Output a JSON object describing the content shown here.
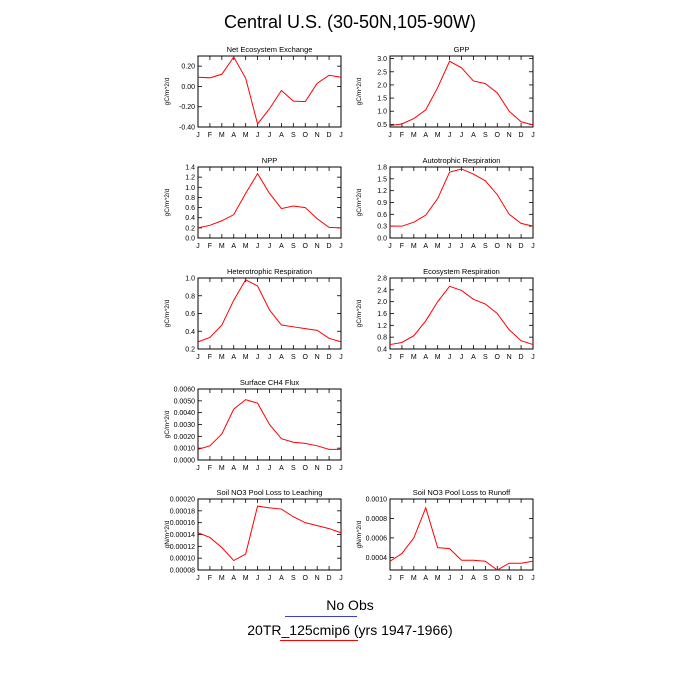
{
  "title": "Central U.S. (30-50N,105-90W)",
  "legend": {
    "obs_label": "No Obs",
    "obs_color": "#3d3dcc",
    "model_label": "20TR_125cmip6 (yrs 1947-1966)",
    "model_color": "#ff0000"
  },
  "chart_data": [
    {
      "type": "line",
      "title": "Net Ecosystem Exchange",
      "ylabel": "gC/m^2/d",
      "categories": [
        "J",
        "F",
        "M",
        "A",
        "M",
        "J",
        "J",
        "A",
        "S",
        "O",
        "N",
        "D",
        "J"
      ],
      "ylim": [
        -0.4,
        0.3
      ],
      "yticks": [
        -0.4,
        -0.2,
        0.0,
        0.2
      ],
      "ytick_labels": [
        "-0.40",
        "-0.20",
        "0.00",
        "0.20"
      ],
      "series": [
        {
          "values": [
            0.09,
            0.085,
            0.12,
            0.29,
            0.08,
            -0.37,
            -0.22,
            -0.04,
            -0.145,
            -0.15,
            0.03,
            0.11,
            0.09
          ]
        }
      ]
    },
    {
      "type": "line",
      "title": "GPP",
      "ylabel": "gC/m^2/d",
      "categories": [
        "J",
        "F",
        "M",
        "A",
        "M",
        "J",
        "J",
        "A",
        "S",
        "O",
        "N",
        "D",
        "J"
      ],
      "ylim": [
        0.4,
        3.1
      ],
      "yticks": [
        0.5,
        1.0,
        1.5,
        2.0,
        2.5,
        3.0
      ],
      "ytick_labels": [
        "0.5",
        "1.0",
        "1.5",
        "2.0",
        "2.5",
        "3.0"
      ],
      "series": [
        {
          "values": [
            0.45,
            0.52,
            0.72,
            1.05,
            1.9,
            2.9,
            2.65,
            2.15,
            2.05,
            1.7,
            1.0,
            0.6,
            0.48
          ]
        }
      ]
    },
    {
      "type": "line",
      "title": "NPP",
      "ylabel": "gC/m^2/d",
      "categories": [
        "J",
        "F",
        "M",
        "A",
        "M",
        "J",
        "J",
        "A",
        "S",
        "O",
        "N",
        "D",
        "J"
      ],
      "ylim": [
        0.0,
        1.4
      ],
      "yticks": [
        0.0,
        0.2,
        0.4,
        0.6,
        0.8,
        1.0,
        1.2,
        1.4
      ],
      "ytick_labels": [
        "0.0",
        "0.2",
        "0.4",
        "0.6",
        "0.8",
        "1.0",
        "1.2",
        "1.4"
      ],
      "series": [
        {
          "values": [
            0.2,
            0.25,
            0.34,
            0.46,
            0.88,
            1.27,
            0.88,
            0.58,
            0.63,
            0.6,
            0.38,
            0.21,
            0.2
          ]
        }
      ]
    },
    {
      "type": "line",
      "title": "Autotrophic Respiration",
      "ylabel": "gC/m^2/d",
      "categories": [
        "J",
        "F",
        "M",
        "A",
        "M",
        "J",
        "J",
        "A",
        "S",
        "O",
        "N",
        "D",
        "J"
      ],
      "ylim": [
        0.0,
        1.8
      ],
      "yticks": [
        0.0,
        0.3,
        0.6,
        0.9,
        1.2,
        1.5,
        1.8
      ],
      "ytick_labels": [
        "0.0",
        "0.3",
        "0.6",
        "0.9",
        "1.2",
        "1.5",
        "1.8"
      ],
      "series": [
        {
          "values": [
            0.3,
            0.3,
            0.4,
            0.58,
            1.0,
            1.67,
            1.75,
            1.62,
            1.45,
            1.1,
            0.6,
            0.37,
            0.3
          ]
        }
      ]
    },
    {
      "type": "line",
      "title": "Heterotrophic Respiration",
      "ylabel": "gC/m^2/d",
      "categories": [
        "J",
        "F",
        "M",
        "A",
        "M",
        "J",
        "J",
        "A",
        "S",
        "O",
        "N",
        "D",
        "J"
      ],
      "ylim": [
        0.2,
        1.0
      ],
      "yticks": [
        0.2,
        0.4,
        0.6,
        0.8,
        1.0
      ],
      "ytick_labels": [
        "0.2",
        "0.4",
        "0.6",
        "0.8",
        "1.0"
      ],
      "series": [
        {
          "values": [
            0.28,
            0.33,
            0.47,
            0.75,
            0.98,
            0.91,
            0.64,
            0.47,
            0.45,
            0.43,
            0.41,
            0.32,
            0.28
          ]
        }
      ]
    },
    {
      "type": "line",
      "title": "Ecosystem Respiration",
      "ylabel": "gC/m^2/d",
      "categories": [
        "J",
        "F",
        "M",
        "A",
        "M",
        "J",
        "J",
        "A",
        "S",
        "O",
        "N",
        "D",
        "J"
      ],
      "ylim": [
        0.4,
        2.8
      ],
      "yticks": [
        0.4,
        0.8,
        1.2,
        1.6,
        2.0,
        2.4,
        2.8
      ],
      "ytick_labels": [
        "0.4",
        "0.8",
        "1.2",
        "1.6",
        "2.0",
        "2.4",
        "2.8"
      ],
      "series": [
        {
          "values": [
            0.55,
            0.62,
            0.85,
            1.35,
            2.0,
            2.52,
            2.38,
            2.08,
            1.92,
            1.6,
            1.05,
            0.68,
            0.55
          ]
        }
      ]
    },
    {
      "type": "line",
      "title": "Surface CH4 Flux",
      "ylabel": "gC/m^2/d",
      "categories": [
        "J",
        "F",
        "M",
        "A",
        "M",
        "J",
        "J",
        "A",
        "S",
        "O",
        "N",
        "D",
        "J"
      ],
      "ylim": [
        0.0,
        0.006
      ],
      "yticks": [
        0.0,
        0.001,
        0.002,
        0.003,
        0.004,
        0.005,
        0.006
      ],
      "ytick_labels": [
        "0.0000",
        "0.0010",
        "0.0020",
        "0.0030",
        "0.0040",
        "0.0050",
        "0.0060"
      ],
      "series": [
        {
          "values": [
            0.0009,
            0.0012,
            0.0022,
            0.0043,
            0.0051,
            0.0048,
            0.003,
            0.0018,
            0.0015,
            0.0014,
            0.0012,
            0.0009,
            0.0009
          ]
        }
      ]
    },
    {
      "type": "line",
      "title": "Soil NO3 Pool Loss to Leaching",
      "ylabel": "gN/m^2/d",
      "categories": [
        "J",
        "F",
        "M",
        "A",
        "M",
        "J",
        "J",
        "A",
        "S",
        "O",
        "N",
        "D",
        "J"
      ],
      "ylim": [
        8e-05,
        0.0002
      ],
      "yticks": [
        8e-05,
        0.0001,
        0.00012,
        0.00014,
        0.00016,
        0.00018,
        0.0002
      ],
      "ytick_labels": [
        "0.00008",
        "0.00010",
        "0.00012",
        "0.00014",
        "0.00016",
        "0.00018",
        "0.00020"
      ],
      "series": [
        {
          "values": [
            0.000143,
            0.000135,
            0.000118,
            9.6e-05,
            0.000107,
            0.000188,
            0.000185,
            0.000183,
            0.00017,
            0.00016,
            0.000155,
            0.00015,
            0.000143
          ]
        }
      ]
    },
    {
      "type": "line",
      "title": "Soil NO3 Pool Loss to Runoff",
      "ylabel": "gN/m^2/d",
      "categories": [
        "J",
        "F",
        "M",
        "A",
        "M",
        "J",
        "J",
        "A",
        "S",
        "O",
        "N",
        "D",
        "J"
      ],
      "ylim": [
        0.00027,
        0.001
      ],
      "yticks": [
        0.0004,
        0.0006,
        0.0008,
        0.001
      ],
      "ytick_labels": [
        "0.0004",
        "0.0006",
        "0.0008",
        "0.0010"
      ],
      "series": [
        {
          "values": [
            0.00036,
            0.00044,
            0.0006,
            0.00091,
            0.0005,
            0.00049,
            0.00037,
            0.00037,
            0.00036,
            0.00027,
            0.00034,
            0.00034,
            0.00036
          ]
        }
      ]
    }
  ]
}
